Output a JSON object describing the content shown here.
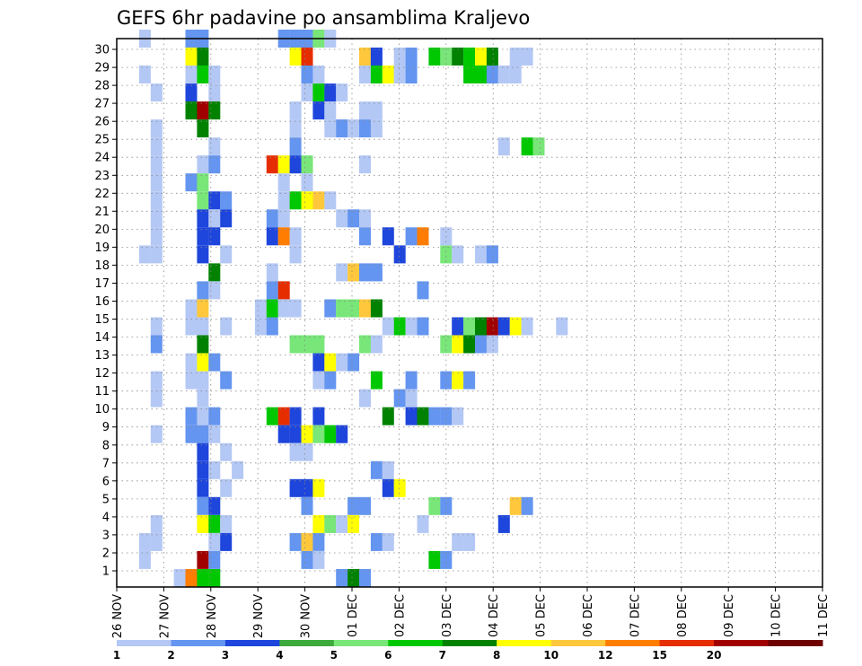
{
  "chart_data": {
    "type": "heatmap",
    "title": "GEFS 6hr padavine po ansamblima Kraljevo",
    "xlabel": "",
    "ylabel": "",
    "x_tick_labels": [
      "26 NOV",
      "27 NOV",
      "28 NOV",
      "29 NOV",
      "30 NOV",
      "01 DEC",
      "02 DEC",
      "03 DEC",
      "04 DEC",
      "05 DEC",
      "06 DEC",
      "07 DEC",
      "08 DEC",
      "09 DEC",
      "10 DEC",
      "11 DEC"
    ],
    "y_tick_labels": [
      "1",
      "2",
      "3",
      "4",
      "5",
      "6",
      "7",
      "8",
      "9",
      "10",
      "11",
      "12",
      "13",
      "14",
      "15",
      "16",
      "17",
      "18",
      "19",
      "20",
      "21",
      "22",
      "23",
      "24",
      "25",
      "26",
      "27",
      "28",
      "29",
      "30"
    ],
    "x_unit": "6-hour step",
    "ylim": [
      0,
      30
    ],
    "grid": true,
    "legend": {
      "placement": "bottom",
      "labels": [
        "1",
        "2",
        "3",
        "4",
        "5",
        "6",
        "7",
        "8",
        "10",
        "12",
        "15",
        "20"
      ],
      "colors": [
        "#b4c8f5",
        "#6495f0",
        "#1e46dc",
        "#3caa3c",
        "#78e678",
        "#00c800",
        "#008200",
        "#ffff00",
        "#ffc83c",
        "#ff7d00",
        "#e62d00",
        "#a00000",
        "#6e0000"
      ]
    },
    "cells": [
      [
        30,
        1,
        1
      ],
      [
        30,
        5,
        2
      ],
      [
        30,
        6,
        2
      ],
      [
        30,
        13,
        2
      ],
      [
        30,
        14,
        2
      ],
      [
        30,
        15,
        2
      ],
      [
        30,
        16,
        5
      ],
      [
        30,
        17,
        1
      ],
      [
        29,
        5,
        8
      ],
      [
        29,
        6,
        7
      ],
      [
        29,
        14,
        8
      ],
      [
        29,
        15,
        15
      ],
      [
        29,
        20,
        10
      ],
      [
        29,
        21,
        3
      ],
      [
        29,
        23,
        1
      ],
      [
        29,
        24,
        2
      ],
      [
        29,
        26,
        6
      ],
      [
        29,
        27,
        5
      ],
      [
        29,
        28,
        7
      ],
      [
        29,
        29,
        6
      ],
      [
        29,
        30,
        8
      ],
      [
        29,
        31,
        7
      ],
      [
        29,
        33,
        1
      ],
      [
        29,
        34,
        1
      ],
      [
        28,
        1,
        1
      ],
      [
        28,
        5,
        1
      ],
      [
        28,
        6,
        6
      ],
      [
        28,
        7,
        1
      ],
      [
        28,
        15,
        2
      ],
      [
        28,
        16,
        1
      ],
      [
        28,
        20,
        1
      ],
      [
        28,
        21,
        6
      ],
      [
        28,
        22,
        8
      ],
      [
        28,
        23,
        1
      ],
      [
        28,
        24,
        2
      ],
      [
        28,
        29,
        6
      ],
      [
        28,
        30,
        6
      ],
      [
        28,
        31,
        2
      ],
      [
        28,
        32,
        1
      ],
      [
        28,
        33,
        1
      ],
      [
        27,
        2,
        1
      ],
      [
        27,
        5,
        3
      ],
      [
        27,
        7,
        1
      ],
      [
        27,
        15,
        1
      ],
      [
        27,
        16,
        6
      ],
      [
        27,
        17,
        3
      ],
      [
        27,
        18,
        1
      ],
      [
        26,
        5,
        7
      ],
      [
        26,
        6,
        20
      ],
      [
        26,
        7,
        7
      ],
      [
        26,
        14,
        1
      ],
      [
        26,
        16,
        3
      ],
      [
        26,
        17,
        1
      ],
      [
        26,
        20,
        1
      ],
      [
        26,
        21,
        1
      ],
      [
        25,
        2,
        1
      ],
      [
        25,
        6,
        7
      ],
      [
        25,
        14,
        1
      ],
      [
        25,
        17,
        1
      ],
      [
        25,
        18,
        2
      ],
      [
        25,
        19,
        1
      ],
      [
        25,
        20,
        2
      ],
      [
        25,
        21,
        1
      ],
      [
        24,
        2,
        1
      ],
      [
        24,
        7,
        1
      ],
      [
        24,
        14,
        2
      ],
      [
        24,
        32,
        1
      ],
      [
        24,
        34,
        6
      ],
      [
        24,
        35,
        5
      ],
      [
        23,
        2,
        1
      ],
      [
        23,
        6,
        1
      ],
      [
        23,
        7,
        2
      ],
      [
        23,
        12,
        15
      ],
      [
        23,
        13,
        8
      ],
      [
        23,
        14,
        3
      ],
      [
        23,
        15,
        5
      ],
      [
        23,
        20,
        1
      ],
      [
        22,
        2,
        1
      ],
      [
        22,
        5,
        2
      ],
      [
        22,
        6,
        5
      ],
      [
        22,
        13,
        1
      ],
      [
        22,
        15,
        1
      ],
      [
        21,
        2,
        1
      ],
      [
        21,
        6,
        5
      ],
      [
        21,
        7,
        3
      ],
      [
        21,
        8,
        2
      ],
      [
        21,
        13,
        1
      ],
      [
        21,
        14,
        6
      ],
      [
        21,
        15,
        8
      ],
      [
        21,
        16,
        10
      ],
      [
        21,
        17,
        1
      ],
      [
        20,
        2,
        1
      ],
      [
        20,
        6,
        3
      ],
      [
        20,
        7,
        1
      ],
      [
        20,
        8,
        3
      ],
      [
        20,
        12,
        2
      ],
      [
        20,
        13,
        1
      ],
      [
        20,
        18,
        1
      ],
      [
        20,
        19,
        2
      ],
      [
        20,
        20,
        1
      ],
      [
        19,
        2,
        1
      ],
      [
        19,
        6,
        3
      ],
      [
        19,
        7,
        3
      ],
      [
        19,
        12,
        3
      ],
      [
        19,
        13,
        12
      ],
      [
        19,
        14,
        1
      ],
      [
        19,
        20,
        2
      ],
      [
        19,
        22,
        3
      ],
      [
        19,
        24,
        2
      ],
      [
        19,
        25,
        12
      ],
      [
        19,
        27,
        1
      ],
      [
        18,
        1,
        1
      ],
      [
        18,
        2,
        1
      ],
      [
        18,
        6,
        3
      ],
      [
        18,
        8,
        1
      ],
      [
        18,
        14,
        1
      ],
      [
        18,
        23,
        3
      ],
      [
        18,
        27,
        5
      ],
      [
        18,
        28,
        1
      ],
      [
        18,
        30,
        1
      ],
      [
        18,
        31,
        2
      ],
      [
        17,
        7,
        7
      ],
      [
        17,
        12,
        1
      ],
      [
        17,
        18,
        1
      ],
      [
        17,
        19,
        10
      ],
      [
        17,
        20,
        2
      ],
      [
        17,
        21,
        2
      ],
      [
        16,
        6,
        2
      ],
      [
        16,
        7,
        1
      ],
      [
        16,
        12,
        2
      ],
      [
        16,
        13,
        15
      ],
      [
        16,
        25,
        2
      ],
      [
        15,
        5,
        1
      ],
      [
        15,
        6,
        10
      ],
      [
        15,
        11,
        1
      ],
      [
        15,
        12,
        6
      ],
      [
        15,
        13,
        1
      ],
      [
        15,
        14,
        1
      ],
      [
        15,
        17,
        2
      ],
      [
        15,
        18,
        5
      ],
      [
        15,
        19,
        5
      ],
      [
        15,
        20,
        10
      ],
      [
        15,
        21,
        7
      ],
      [
        14,
        2,
        1
      ],
      [
        14,
        5,
        1
      ],
      [
        14,
        6,
        1
      ],
      [
        14,
        8,
        1
      ],
      [
        14,
        11,
        1
      ],
      [
        14,
        12,
        2
      ],
      [
        14,
        22,
        1
      ],
      [
        14,
        23,
        6
      ],
      [
        14,
        24,
        1
      ],
      [
        14,
        25,
        2
      ],
      [
        14,
        28,
        3
      ],
      [
        14,
        29,
        5
      ],
      [
        14,
        30,
        7
      ],
      [
        14,
        31,
        20
      ],
      [
        14,
        32,
        3
      ],
      [
        14,
        33,
        8
      ],
      [
        14,
        34,
        1
      ],
      [
        14,
        37,
        1
      ],
      [
        13,
        2,
        2
      ],
      [
        13,
        6,
        7
      ],
      [
        13,
        14,
        5
      ],
      [
        13,
        15,
        5
      ],
      [
        13,
        16,
        5
      ],
      [
        13,
        20,
        5
      ],
      [
        13,
        21,
        1
      ],
      [
        13,
        27,
        5
      ],
      [
        13,
        28,
        8
      ],
      [
        13,
        29,
        7
      ],
      [
        13,
        30,
        2
      ],
      [
        13,
        31,
        1
      ],
      [
        12,
        5,
        1
      ],
      [
        12,
        6,
        8
      ],
      [
        12,
        7,
        2
      ],
      [
        12,
        16,
        3
      ],
      [
        12,
        17,
        8
      ],
      [
        12,
        18,
        1
      ],
      [
        12,
        19,
        2
      ],
      [
        11,
        2,
        1
      ],
      [
        11,
        5,
        1
      ],
      [
        11,
        6,
        1
      ],
      [
        11,
        8,
        2
      ],
      [
        11,
        16,
        1
      ],
      [
        11,
        17,
        2
      ],
      [
        11,
        21,
        6
      ],
      [
        11,
        24,
        2
      ],
      [
        11,
        27,
        2
      ],
      [
        11,
        28,
        8
      ],
      [
        11,
        29,
        2
      ],
      [
        10,
        2,
        1
      ],
      [
        10,
        6,
        1
      ],
      [
        10,
        20,
        1
      ],
      [
        10,
        23,
        2
      ],
      [
        10,
        24,
        1
      ],
      [
        9,
        5,
        2
      ],
      [
        9,
        6,
        1
      ],
      [
        9,
        7,
        2
      ],
      [
        9,
        12,
        6
      ],
      [
        9,
        13,
        15
      ],
      [
        9,
        14,
        3
      ],
      [
        9,
        16,
        3
      ],
      [
        9,
        22,
        7
      ],
      [
        9,
        24,
        3
      ],
      [
        9,
        25,
        7
      ],
      [
        9,
        26,
        2
      ],
      [
        9,
        27,
        2
      ],
      [
        9,
        28,
        1
      ],
      [
        8,
        2,
        1
      ],
      [
        8,
        5,
        2
      ],
      [
        8,
        6,
        2
      ],
      [
        8,
        7,
        1
      ],
      [
        8,
        13,
        3
      ],
      [
        8,
        14,
        3
      ],
      [
        8,
        15,
        8
      ],
      [
        8,
        16,
        5
      ],
      [
        8,
        17,
        6
      ],
      [
        8,
        18,
        3
      ],
      [
        7,
        6,
        3
      ],
      [
        7,
        8,
        1
      ],
      [
        7,
        14,
        1
      ],
      [
        7,
        15,
        1
      ],
      [
        6,
        6,
        3
      ],
      [
        6,
        9,
        1
      ],
      [
        6,
        21,
        2
      ],
      [
        6,
        22,
        1
      ],
      [
        5,
        6,
        3
      ],
      [
        6,
        7,
        1
      ],
      [
        5,
        8,
        1
      ],
      [
        5,
        14,
        3
      ],
      [
        5,
        15,
        3
      ],
      [
        5,
        16,
        8
      ],
      [
        5,
        22,
        3
      ],
      [
        5,
        23,
        8
      ],
      [
        4,
        6,
        2
      ],
      [
        4,
        7,
        3
      ],
      [
        4,
        15,
        2
      ],
      [
        4,
        19,
        2
      ],
      [
        4,
        20,
        2
      ],
      [
        4,
        26,
        5
      ],
      [
        4,
        27,
        2
      ],
      [
        4,
        33,
        10
      ],
      [
        4,
        34,
        2
      ],
      [
        3,
        2,
        1
      ],
      [
        3,
        6,
        8
      ],
      [
        3,
        7,
        6
      ],
      [
        3,
        8,
        1
      ],
      [
        3,
        16,
        8
      ],
      [
        3,
        17,
        5
      ],
      [
        3,
        18,
        1
      ],
      [
        3,
        19,
        8
      ],
      [
        3,
        25,
        1
      ],
      [
        3,
        32,
        3
      ],
      [
        2,
        1,
        1
      ],
      [
        2,
        2,
        1
      ],
      [
        2,
        7,
        1
      ],
      [
        2,
        8,
        3
      ],
      [
        2,
        14,
        2
      ],
      [
        2,
        15,
        10
      ],
      [
        2,
        16,
        2
      ],
      [
        2,
        21,
        2
      ],
      [
        2,
        22,
        1
      ],
      [
        2,
        28,
        1
      ],
      [
        2,
        29,
        1
      ],
      [
        1,
        1,
        1
      ],
      [
        1,
        6,
        20
      ],
      [
        1,
        7,
        2
      ],
      [
        1,
        15,
        2
      ],
      [
        1,
        16,
        1
      ],
      [
        1,
        26,
        6
      ],
      [
        1,
        27,
        2
      ],
      [
        0,
        4,
        1
      ],
      [
        0,
        5,
        12
      ],
      [
        0,
        6,
        6
      ],
      [
        0,
        7,
        6
      ],
      [
        0,
        18,
        2
      ],
      [
        0,
        19,
        7
      ],
      [
        0,
        20,
        2
      ]
    ]
  }
}
